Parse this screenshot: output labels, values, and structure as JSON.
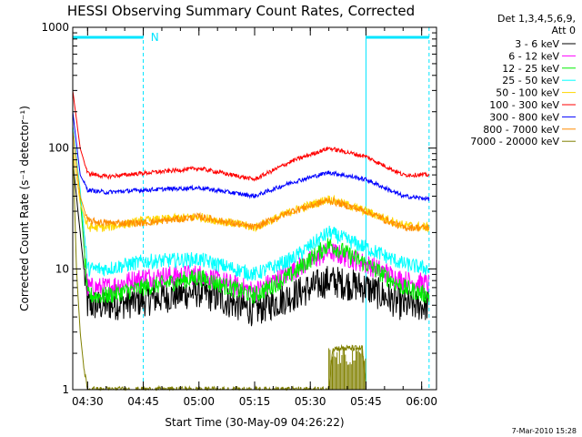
{
  "chart_data": {
    "type": "line",
    "title": "HESSI Observing Summary Count Rates, Corrected",
    "xlabel": "Start Time (30-May-09 04:26:22)",
    "ylabel": "Corrected Count Rate (s⁻¹ detector⁻¹)",
    "y_scale": "log",
    "ylim": [
      1,
      1000
    ],
    "xlim": [
      "04:26",
      "06:04"
    ],
    "y_tick_labels": [
      "1",
      "10",
      "100",
      "1000"
    ],
    "x_tick_labels": [
      "04:30",
      "04:45",
      "05:00",
      "05:15",
      "05:30",
      "05:45",
      "06:00"
    ],
    "x_tick_minutes": [
      4,
      19,
      34,
      49,
      64,
      79,
      94
    ],
    "legend_header": [
      "Det 1,3,4,5,6,9,",
      "Att 0"
    ],
    "legend_position": "right",
    "annotation": {
      "text": "N",
      "x": "04:47"
    },
    "night_intervals": [
      [
        "04:26",
        "04:45"
      ],
      [
        "05:45",
        "06:02"
      ]
    ],
    "night_color": "#00e5ff",
    "footer_stamp": "7-Mar-2010 15:28",
    "series": [
      {
        "name": "3 - 6 keV",
        "color": "#000000",
        "x": [
          "04:26",
          "04:28",
          "04:30",
          "04:35",
          "04:45",
          "05:00",
          "05:15",
          "05:25",
          "05:35",
          "05:45",
          "05:55",
          "06:02"
        ],
        "y": [
          80,
          20,
          5,
          5,
          5.5,
          6.5,
          4.5,
          6,
          8,
          7,
          5,
          5
        ]
      },
      {
        "name": "6 - 12 keV",
        "color": "#ff00ff",
        "x": [
          "04:26",
          "04:28",
          "04:30",
          "04:35",
          "04:45",
          "05:00",
          "05:15",
          "05:25",
          "05:35",
          "05:45",
          "05:55",
          "06:02"
        ],
        "y": [
          150,
          40,
          7,
          7,
          8.5,
          9,
          6.5,
          9.5,
          14,
          11,
          8,
          7.5
        ]
      },
      {
        "name": "12 - 25 keV",
        "color": "#00ee00",
        "x": [
          "04:26",
          "04:28",
          "04:30",
          "04:35",
          "04:45",
          "05:00",
          "05:15",
          "05:25",
          "05:35",
          "05:45",
          "05:55",
          "06:02"
        ],
        "y": [
          150,
          40,
          6,
          6,
          7,
          8.5,
          6,
          9,
          16,
          11,
          7,
          6
        ]
      },
      {
        "name": "25 - 50 keV",
        "color": "#00ffff",
        "x": [
          "04:26",
          "04:28",
          "04:30",
          "04:35",
          "04:45",
          "05:00",
          "05:15",
          "05:25",
          "05:35",
          "05:45",
          "05:55",
          "06:02"
        ],
        "y": [
          150,
          45,
          10,
          10,
          11.5,
          12,
          9,
          12,
          20,
          15,
          11,
          10
        ]
      },
      {
        "name": "50 - 100 keV",
        "color": "#ffd700",
        "x": [
          "04:26",
          "04:28",
          "04:30",
          "04:35",
          "04:45",
          "05:00",
          "05:15",
          "05:25",
          "05:35",
          "05:45",
          "05:55",
          "06:02"
        ],
        "y": [
          100,
          35,
          22,
          22,
          25,
          27,
          22,
          30,
          38,
          30,
          23,
          22
        ]
      },
      {
        "name": "100 - 300 keV",
        "color": "#ff0000",
        "x": [
          "04:26",
          "04:28",
          "04:30",
          "04:35",
          "04:45",
          "05:00",
          "05:15",
          "05:25",
          "05:35",
          "05:45",
          "05:55",
          "06:02"
        ],
        "y": [
          300,
          100,
          62,
          58,
          62,
          68,
          55,
          78,
          100,
          85,
          60,
          60
        ]
      },
      {
        "name": "300 - 800 keV",
        "color": "#0000ff",
        "x": [
          "04:26",
          "04:28",
          "04:30",
          "04:35",
          "04:45",
          "05:00",
          "05:15",
          "05:25",
          "05:35",
          "05:45",
          "05:55",
          "06:02"
        ],
        "y": [
          200,
          60,
          45,
          43,
          45,
          47,
          40,
          52,
          63,
          55,
          40,
          38
        ]
      },
      {
        "name": "800 - 7000 keV",
        "color": "#ff8c00",
        "x": [
          "04:26",
          "04:28",
          "04:30",
          "04:35",
          "04:45",
          "05:00",
          "05:15",
          "05:25",
          "05:35",
          "05:45",
          "05:55",
          "06:02"
        ],
        "y": [
          140,
          40,
          25,
          24,
          24,
          27,
          22,
          30,
          37,
          30,
          22,
          22
        ]
      },
      {
        "name": "7000 - 20000 keV",
        "color": "#808000",
        "x": [
          "04:26",
          "04:27",
          "04:28",
          "04:29",
          "04:30",
          "05:35",
          "05:36",
          "05:44",
          "05:45"
        ],
        "y": [
          120,
          10,
          3,
          1.5,
          1,
          1,
          2.2,
          2.2,
          1
        ]
      }
    ]
  }
}
